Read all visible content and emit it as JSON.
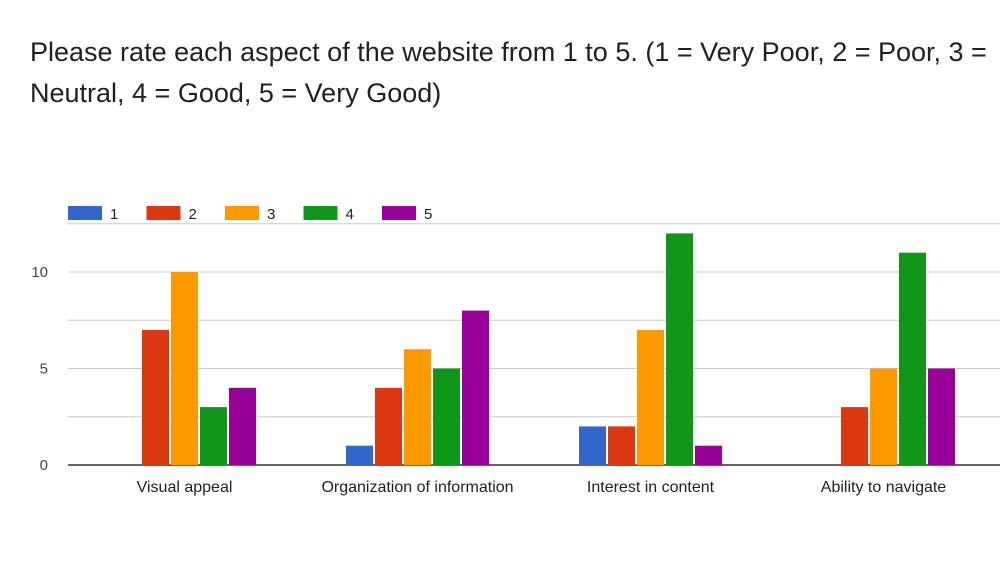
{
  "chart_data": {
    "type": "bar",
    "title": "Please rate each aspect of the website from 1 to 5. (1 = Very Poor, 2 = Poor, 3 = Neutral, 4 = Good, 5 = Very Good)",
    "categories": [
      "Visual appeal",
      "Organization of information",
      "Interest in content",
      "Ability to navigate"
    ],
    "series": [
      {
        "name": "1",
        "color": "#3366cc",
        "values": [
          0,
          1,
          2,
          0
        ]
      },
      {
        "name": "2",
        "color": "#dc3912",
        "values": [
          7,
          4,
          2,
          3
        ]
      },
      {
        "name": "3",
        "color": "#ff9900",
        "values": [
          10,
          6,
          7,
          5
        ]
      },
      {
        "name": "4",
        "color": "#109618",
        "values": [
          3,
          5,
          12,
          11
        ]
      },
      {
        "name": "5",
        "color": "#990099",
        "values": [
          4,
          8,
          1,
          5
        ]
      }
    ],
    "yticks": [
      "0",
      "5",
      "10"
    ],
    "ylim": [
      0,
      12.5
    ],
    "xlabel": "",
    "ylabel": "",
    "grid": true,
    "legend_position": "top-left"
  }
}
